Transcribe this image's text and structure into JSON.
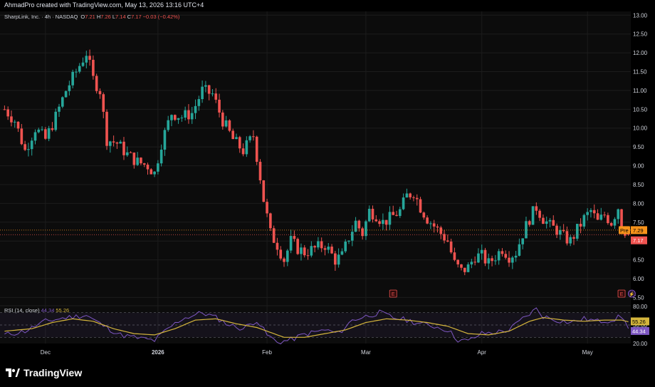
{
  "header": {
    "caption": "AhmadPro created with TradingView.com, May 13, 2026 13:16 UTC+4"
  },
  "legend": {
    "symbol": "SharpLink, Inc. · 4h · NASDAQ",
    "o_label": "O",
    "o": "7.21",
    "h_label": "H",
    "h": "7.26",
    "l_label": "L",
    "l": "7.14",
    "c_label": "C",
    "c": "7.17",
    "change": "−0.03 (−0.42%)"
  },
  "rsi_legend": {
    "label": "RSI (14, close)",
    "rsi": "44.34",
    "ma": "55.26"
  },
  "badges": {
    "pre_label": "Pre",
    "pre_price": "7.29",
    "last_price": "7.17",
    "rsi_ma_badge": "55.26",
    "rsi_badge": "44.34",
    "earnings_letter": "E",
    "dividend_letter": "⚡"
  },
  "brand": {
    "name": "TradingView"
  },
  "colors": {
    "up": "#26a69a",
    "down": "#ef5350",
    "rsi_line": "#7e57c2",
    "rsi_ma": "#d4b53c",
    "pre": "#f7931a",
    "grid": "#1c1c1c"
  },
  "chart_data": [
    {
      "type": "candlestick",
      "y_axis_ticks": [
        13.0,
        12.5,
        12.0,
        11.5,
        11.0,
        10.5,
        10.0,
        9.5,
        9.0,
        8.5,
        8.0,
        7.5,
        7.0,
        6.5,
        6.0,
        5.5
      ],
      "y_axis_labels": [
        "13.00",
        "12.50",
        "12.00",
        "11.50",
        "11.00",
        "10.50",
        "10.00",
        "9.50",
        "9.00",
        "8.50",
        "8.00",
        "7.50",
        "7.00",
        "6.50",
        "6.00",
        "5.50"
      ],
      "ylim": [
        5.3,
        13.1
      ],
      "x_axis_labels": [
        "Dec",
        "2026",
        "Feb",
        "Mar",
        "Apr",
        "May"
      ],
      "x_label_bar_index": [
        12,
        45,
        77,
        106,
        140,
        171
      ],
      "num_bars": 184,
      "grid": true,
      "price_lines": [
        {
          "name": "Pre",
          "value": 7.29
        },
        {
          "name": "Last",
          "value": 7.17
        }
      ],
      "events": [
        {
          "type": "earnings",
          "bar": 114
        },
        {
          "type": "earnings",
          "bar": 181
        },
        {
          "type": "dividend",
          "bar": 184
        }
      ],
      "close_anchors": [
        [
          0,
          10.5
        ],
        [
          3,
          10.2
        ],
        [
          6,
          9.4
        ],
        [
          9,
          10.0
        ],
        [
          12,
          9.7
        ],
        [
          15,
          10.3
        ],
        [
          18,
          11.0
        ],
        [
          21,
          11.5
        ],
        [
          24,
          12.0
        ],
        [
          26,
          11.3
        ],
        [
          28,
          11.0
        ],
        [
          30,
          9.7
        ],
        [
          33,
          9.6
        ],
        [
          36,
          9.3
        ],
        [
          39,
          9.1
        ],
        [
          42,
          9.0
        ],
        [
          44,
          8.8
        ],
        [
          46,
          9.6
        ],
        [
          49,
          10.4
        ],
        [
          52,
          10.3
        ],
        [
          55,
          10.4
        ],
        [
          58,
          11.0
        ],
        [
          61,
          10.9
        ],
        [
          64,
          10.2
        ],
        [
          67,
          9.7
        ],
        [
          70,
          9.4
        ],
        [
          73,
          9.8
        ],
        [
          75,
          8.7
        ],
        [
          76,
          8.1
        ],
        [
          78,
          7.2
        ],
        [
          80,
          6.9
        ],
        [
          82,
          6.5
        ],
        [
          84,
          7.0
        ],
        [
          86,
          6.8
        ],
        [
          88,
          6.7
        ],
        [
          91,
          6.8
        ],
        [
          94,
          6.9
        ],
        [
          97,
          6.5
        ],
        [
          99,
          6.6
        ],
        [
          101,
          7.1
        ],
        [
          103,
          7.5
        ],
        [
          105,
          7.2
        ],
        [
          107,
          7.8
        ],
        [
          109,
          7.7
        ],
        [
          111,
          7.5
        ],
        [
          113,
          7.6
        ],
        [
          116,
          7.8
        ],
        [
          118,
          8.2
        ],
        [
          120,
          8.3
        ],
        [
          122,
          7.9
        ],
        [
          124,
          7.6
        ],
        [
          127,
          7.3
        ],
        [
          130,
          7.0
        ],
        [
          132,
          6.4
        ],
        [
          134,
          6.2
        ],
        [
          136,
          6.3
        ],
        [
          138,
          6.6
        ],
        [
          140,
          6.6
        ],
        [
          142,
          6.4
        ],
        [
          144,
          6.6
        ],
        [
          146,
          6.8
        ],
        [
          148,
          6.6
        ],
        [
          150,
          6.7
        ],
        [
          152,
          7.2
        ],
        [
          154,
          7.6
        ],
        [
          156,
          7.9
        ],
        [
          158,
          7.6
        ],
        [
          160,
          7.4
        ],
        [
          162,
          7.3
        ],
        [
          164,
          7.1
        ],
        [
          166,
          7.0
        ],
        [
          168,
          7.3
        ],
        [
          170,
          7.6
        ],
        [
          172,
          7.8
        ],
        [
          174,
          7.5
        ],
        [
          176,
          7.7
        ],
        [
          178,
          7.5
        ],
        [
          180,
          7.9
        ],
        [
          181,
          7.4
        ],
        [
          183,
          7.17
        ]
      ],
      "last": {
        "open": 7.21,
        "high": 7.26,
        "low": 7.14,
        "close": 7.17
      }
    },
    {
      "type": "line",
      "name": "RSI (14, close)",
      "y_axis_ticks": [
        80.0,
        50.0,
        20.0
      ],
      "y_axis_labels": [
        "80.00",
        "50.00",
        "20.00"
      ],
      "ylim": [
        20,
        80
      ],
      "bands": [
        70,
        50,
        30
      ],
      "series": [
        {
          "name": "RSI",
          "anchors": [
            [
              0,
              34
            ],
            [
              6,
              40
            ],
            [
              12,
              56
            ],
            [
              18,
              62
            ],
            [
              24,
              66
            ],
            [
              28,
              52
            ],
            [
              34,
              34
            ],
            [
              40,
              28
            ],
            [
              44,
              25
            ],
            [
              48,
              44
            ],
            [
              52,
              60
            ],
            [
              58,
              70
            ],
            [
              62,
              62
            ],
            [
              66,
              50
            ],
            [
              70,
              44
            ],
            [
              74,
              58
            ],
            [
              77,
              34
            ],
            [
              80,
              22
            ],
            [
              84,
              26
            ],
            [
              88,
              35
            ],
            [
              94,
              42
            ],
            [
              98,
              36
            ],
            [
              102,
              58
            ],
            [
              106,
              64
            ],
            [
              110,
              70
            ],
            [
              114,
              62
            ],
            [
              118,
              58
            ],
            [
              122,
              52
            ],
            [
              126,
              48
            ],
            [
              130,
              42
            ],
            [
              133,
              26
            ],
            [
              136,
              24
            ],
            [
              140,
              36
            ],
            [
              144,
              38
            ],
            [
              148,
              42
            ],
            [
              152,
              60
            ],
            [
              156,
              76
            ],
            [
              158,
              64
            ],
            [
              162,
              58
            ],
            [
              166,
              54
            ],
            [
              170,
              60
            ],
            [
              174,
              56
            ],
            [
              178,
              58
            ],
            [
              181,
              64
            ],
            [
              183,
              44.34
            ]
          ]
        },
        {
          "name": "RSI-based MA",
          "anchors": [
            [
              0,
              40
            ],
            [
              8,
              44
            ],
            [
              14,
              54
            ],
            [
              20,
              60
            ],
            [
              26,
              56
            ],
            [
              32,
              44
            ],
            [
              38,
              36
            ],
            [
              44,
              34
            ],
            [
              50,
              44
            ],
            [
              56,
              58
            ],
            [
              62,
              60
            ],
            [
              68,
              52
            ],
            [
              74,
              46
            ],
            [
              78,
              38
            ],
            [
              82,
              30
            ],
            [
              88,
              30
            ],
            [
              94,
              36
            ],
            [
              100,
              42
            ],
            [
              106,
              54
            ],
            [
              112,
              60
            ],
            [
              118,
              58
            ],
            [
              124,
              54
            ],
            [
              130,
              48
            ],
            [
              136,
              36
            ],
            [
              142,
              34
            ],
            [
              148,
              40
            ],
            [
              154,
              56
            ],
            [
              158,
              62
            ],
            [
              164,
              58
            ],
            [
              170,
              56
            ],
            [
              176,
              58
            ],
            [
              181,
              58
            ],
            [
              183,
              55.26
            ]
          ]
        }
      ],
      "last_values": {
        "RSI": 44.34,
        "RSI-based MA": 55.26
      }
    }
  ]
}
